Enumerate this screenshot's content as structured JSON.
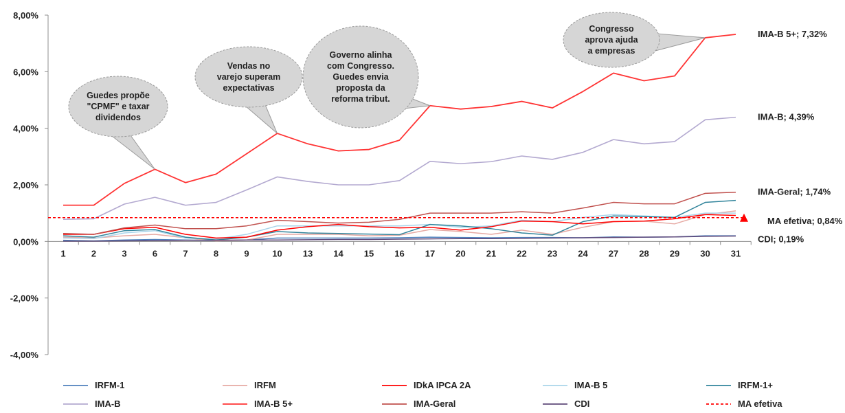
{
  "chart_data": {
    "type": "line",
    "categories": [
      "1",
      "2",
      "3",
      "6",
      "7",
      "8",
      "9",
      "10",
      "13",
      "14",
      "15",
      "16",
      "17",
      "20",
      "21",
      "22",
      "23",
      "24",
      "27",
      "28",
      "29",
      "30",
      "31"
    ],
    "y_ticks": [
      "8,00%",
      "6,00%",
      "4,00%",
      "2,00%",
      "0,00%",
      "-2,00%",
      "-4,00%"
    ],
    "ylim": [
      -4,
      8
    ],
    "grid": false,
    "legend_position": "bottom",
    "series": [
      {
        "name": "IRFM-1",
        "color": "#4f81bd",
        "style": "solid",
        "values": [
          0.04,
          0.02,
          0.05,
          0.07,
          0.05,
          0.03,
          0.05,
          0.12,
          0.12,
          0.12,
          0.12,
          0.13,
          0.15,
          0.14,
          0.13,
          0.14,
          0.14,
          0.13,
          0.16,
          0.15,
          0.16,
          0.2,
          0.2
        ]
      },
      {
        "name": "IRFM",
        "color": "#e6a9a3",
        "style": "solid",
        "values": [
          0.15,
          0.12,
          0.2,
          0.25,
          0.13,
          0.02,
          0.05,
          0.25,
          0.25,
          0.25,
          0.2,
          0.22,
          0.42,
          0.35,
          0.25,
          0.4,
          0.25,
          0.5,
          0.7,
          0.72,
          0.62,
          0.95,
          1.08
        ]
      },
      {
        "name": "IDkA IPCA 2A",
        "color": "#ff0000",
        "style": "solid",
        "values": [
          0.25,
          0.25,
          0.45,
          0.5,
          0.25,
          0.12,
          0.15,
          0.4,
          0.52,
          0.6,
          0.52,
          0.48,
          0.5,
          0.4,
          0.52,
          0.72,
          0.7,
          0.62,
          0.7,
          0.72,
          0.8,
          0.95,
          0.92
        ]
      },
      {
        "name": "IMA-B 5",
        "color": "#a9d4ea",
        "style": "solid",
        "values": [
          0.12,
          0.1,
          0.3,
          0.38,
          0.12,
          0.08,
          0.25,
          0.55,
          0.55,
          0.55,
          0.55,
          0.55,
          0.6,
          0.5,
          0.55,
          0.75,
          0.7,
          0.85,
          0.95,
          0.9,
          0.85,
          1.0,
          1.0
        ]
      },
      {
        "name": "IRFM-1+",
        "color": "#31849b",
        "style": "solid",
        "values": [
          0.2,
          0.15,
          0.38,
          0.42,
          0.15,
          0.05,
          0.15,
          0.35,
          0.3,
          0.28,
          0.26,
          0.24,
          0.6,
          0.55,
          0.45,
          0.3,
          0.22,
          0.7,
          0.9,
          0.88,
          0.85,
          1.38,
          1.45
        ]
      },
      {
        "name": "IMA-B",
        "color": "#b3a9d0",
        "style": "solid",
        "values": [
          0.78,
          0.8,
          1.32,
          1.56,
          1.28,
          1.38,
          1.82,
          2.28,
          2.12,
          2.0,
          2.0,
          2.15,
          2.83,
          2.75,
          2.82,
          3.02,
          2.9,
          3.15,
          3.6,
          3.45,
          3.53,
          4.3,
          4.39
        ]
      },
      {
        "name": "IMA-B 5+",
        "color": "#ff3333",
        "style": "solid",
        "values": [
          1.28,
          1.28,
          2.05,
          2.55,
          2.08,
          2.38,
          3.1,
          3.82,
          3.45,
          3.2,
          3.25,
          3.58,
          4.8,
          4.68,
          4.77,
          4.95,
          4.72,
          5.3,
          5.95,
          5.68,
          5.85,
          7.2,
          7.32
        ]
      },
      {
        "name": "IMA-Geral",
        "color": "#c0504d",
        "style": "solid",
        "values": [
          0.28,
          0.25,
          0.48,
          0.58,
          0.45,
          0.45,
          0.55,
          0.75,
          0.7,
          0.65,
          0.68,
          0.78,
          1.0,
          1.0,
          1.0,
          1.05,
          1.0,
          1.18,
          1.38,
          1.33,
          1.33,
          1.7,
          1.74
        ]
      },
      {
        "name": "CDI",
        "color": "#5f497a",
        "style": "solid",
        "values": [
          0.01,
          0.01,
          0.02,
          0.03,
          0.04,
          0.04,
          0.05,
          0.05,
          0.06,
          0.07,
          0.07,
          0.08,
          0.09,
          0.1,
          0.1,
          0.11,
          0.12,
          0.13,
          0.14,
          0.15,
          0.16,
          0.18,
          0.19
        ]
      },
      {
        "name": "MA efetiva",
        "color": "#ff0000",
        "style": "dashed",
        "values": [
          0.84,
          0.84,
          0.84,
          0.84,
          0.84,
          0.84,
          0.84,
          0.84,
          0.84,
          0.84,
          0.84,
          0.84,
          0.84,
          0.84,
          0.84,
          0.84,
          0.84,
          0.84,
          0.84,
          0.84,
          0.84,
          0.84,
          0.84
        ]
      }
    ],
    "end_labels": [
      {
        "series": "IMA-B 5+",
        "text": "IMA-B 5+; 7,32%"
      },
      {
        "series": "IMA-B",
        "text": "IMA-B; 4,39%"
      },
      {
        "series": "IMA-Geral",
        "text": "IMA-Geral; 1,74%"
      },
      {
        "series": "MA efetiva",
        "text": "MA efetiva; 0,84%"
      },
      {
        "series": "CDI",
        "text": "CDI; 0,19%"
      }
    ],
    "annotations": [
      {
        "text": [
          "Guedes  propõe",
          "\"CPMF\" e taxar",
          "dividendos"
        ],
        "target_index": 3,
        "target_value": 2.55
      },
      {
        "text": [
          "Vendas no",
          "varejo superam",
          "expectativas"
        ],
        "target_index": 7,
        "target_value": 3.82
      },
      {
        "text": [
          "Governo alinha",
          "com Congresso.",
          "Guedes  envia",
          "proposta da",
          "reforma tribut."
        ],
        "target_index": 12,
        "target_value": 4.8
      },
      {
        "text": [
          "Congresso",
          "aprova ajuda",
          "a empresas"
        ],
        "target_index": 21,
        "target_value": 7.2
      }
    ],
    "marker": {
      "series": "MA efetiva",
      "shape": "triangle",
      "color": "#ff0000"
    }
  }
}
